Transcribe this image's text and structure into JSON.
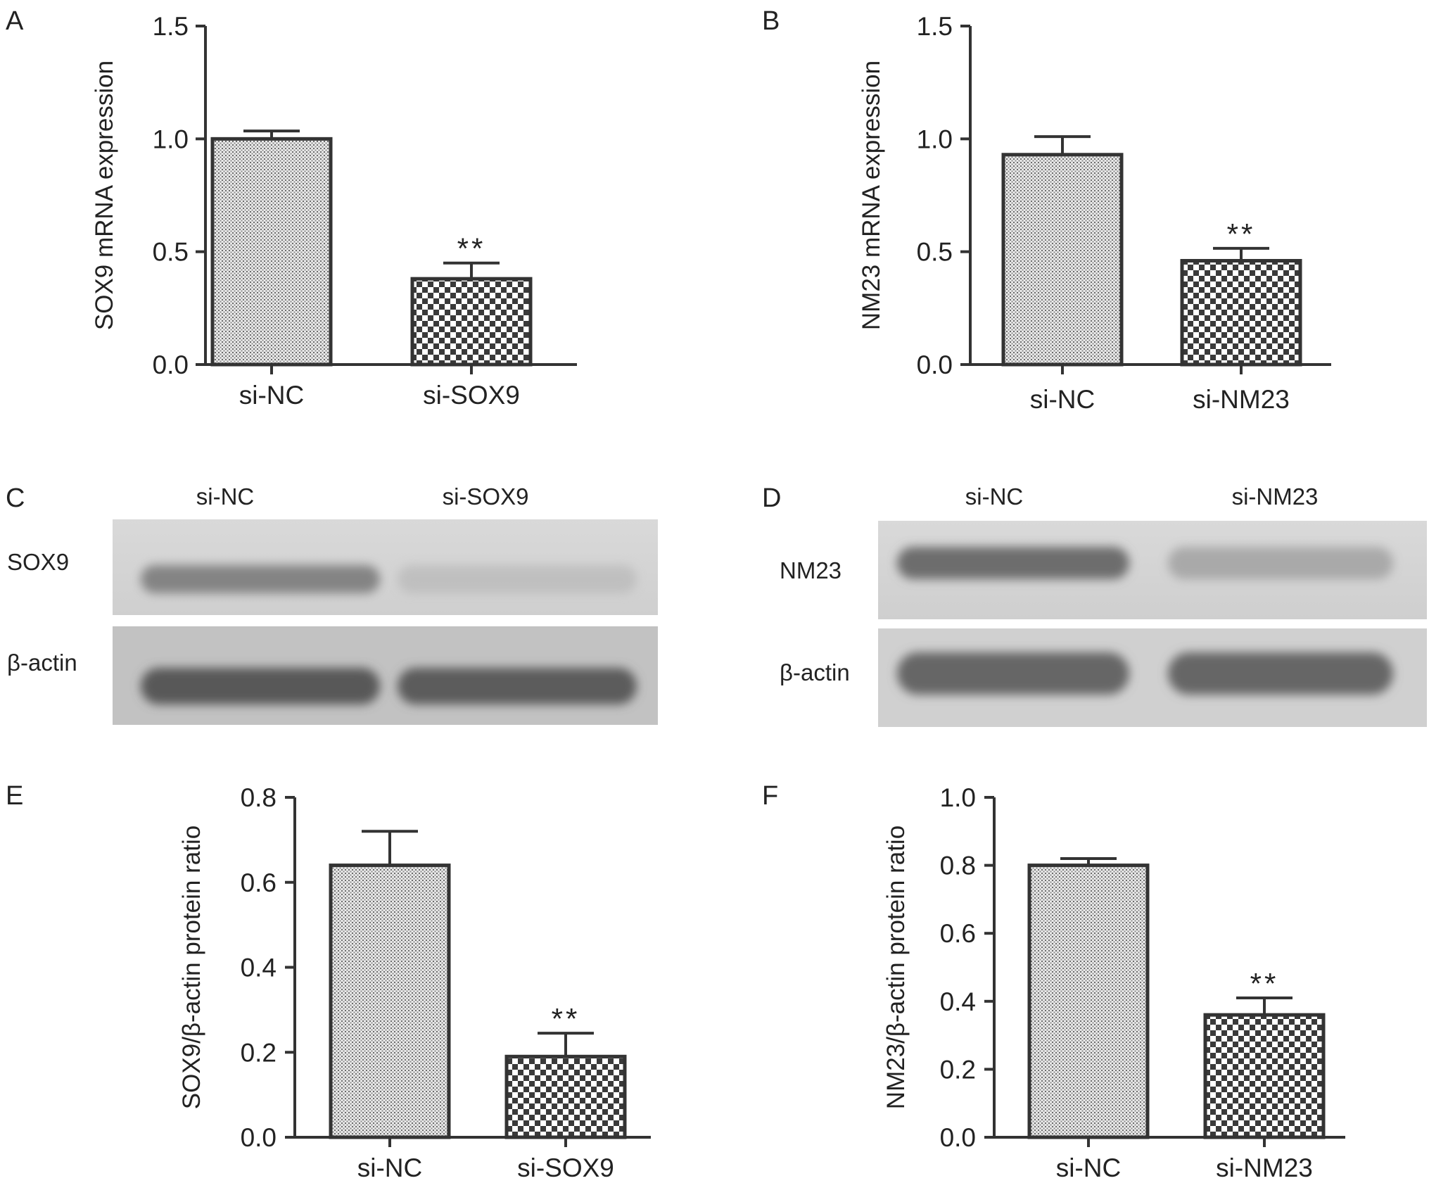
{
  "figure": {
    "panels": {
      "A": {
        "letter": "A"
      },
      "B": {
        "letter": "B"
      },
      "C": {
        "letter": "C"
      },
      "D": {
        "letter": "D"
      },
      "E": {
        "letter": "E"
      },
      "F": {
        "letter": "F"
      }
    }
  },
  "chart_data": [
    {
      "panel": "A",
      "type": "bar",
      "categories": [
        "si-NC",
        "si-SOX9"
      ],
      "values": [
        1.0,
        0.38
      ],
      "errors": [
        0.035,
        0.07
      ],
      "significance": [
        "",
        "**"
      ],
      "ylabel": "SOX9 mRNA expression",
      "ylim": [
        0,
        1.5
      ],
      "yticks": [
        "0.0",
        "0.5",
        "1.0",
        "1.5"
      ],
      "grid": false,
      "bar_patterns": [
        "fine-dots",
        "checker"
      ]
    },
    {
      "panel": "B",
      "type": "bar",
      "categories": [
        "si-NC",
        "si-NM23"
      ],
      "values": [
        0.93,
        0.46
      ],
      "errors": [
        0.08,
        0.055
      ],
      "significance": [
        "",
        "**"
      ],
      "ylabel": "NM23 mRNA expression",
      "ylim": [
        0,
        1.5
      ],
      "yticks": [
        "0.0",
        "0.5",
        "1.0",
        "1.5"
      ],
      "grid": false,
      "bar_patterns": [
        "fine-dots",
        "checker"
      ]
    },
    {
      "panel": "E",
      "type": "bar",
      "categories": [
        "si-NC",
        "si-SOX9"
      ],
      "values": [
        0.64,
        0.19
      ],
      "errors": [
        0.08,
        0.055
      ],
      "significance": [
        "",
        "**"
      ],
      "ylabel": "SOX9/β-actin protein ratio",
      "ylim": [
        0,
        0.8
      ],
      "yticks": [
        "0.0",
        "0.2",
        "0.4",
        "0.6",
        "0.8"
      ],
      "grid": false,
      "bar_patterns": [
        "fine-dots",
        "checker"
      ]
    },
    {
      "panel": "F",
      "type": "bar",
      "categories": [
        "si-NC",
        "si-NM23"
      ],
      "values": [
        0.8,
        0.36
      ],
      "errors": [
        0.02,
        0.05
      ],
      "significance": [
        "",
        "**"
      ],
      "ylabel": "NM23/β-actin protein ratio",
      "ylim": [
        0,
        1.0
      ],
      "yticks": [
        "0.0",
        "0.2",
        "0.4",
        "0.6",
        "0.8",
        "1.0"
      ],
      "grid": false,
      "bar_patterns": [
        "fine-dots",
        "checker"
      ]
    }
  ],
  "blots": {
    "C": {
      "lanes": [
        "si-NC",
        "si-SOX9"
      ],
      "rows": [
        {
          "label": "SOX9",
          "intensities": [
            0.55,
            0.18
          ]
        },
        {
          "label": "β-actin",
          "intensities": [
            0.8,
            0.78
          ]
        }
      ]
    },
    "D": {
      "lanes": [
        "si-NC",
        "si-NM23"
      ],
      "rows": [
        {
          "label": "NM23",
          "intensities": [
            0.65,
            0.35
          ]
        },
        {
          "label": "β-actin",
          "intensities": [
            0.7,
            0.7
          ]
        }
      ]
    }
  }
}
